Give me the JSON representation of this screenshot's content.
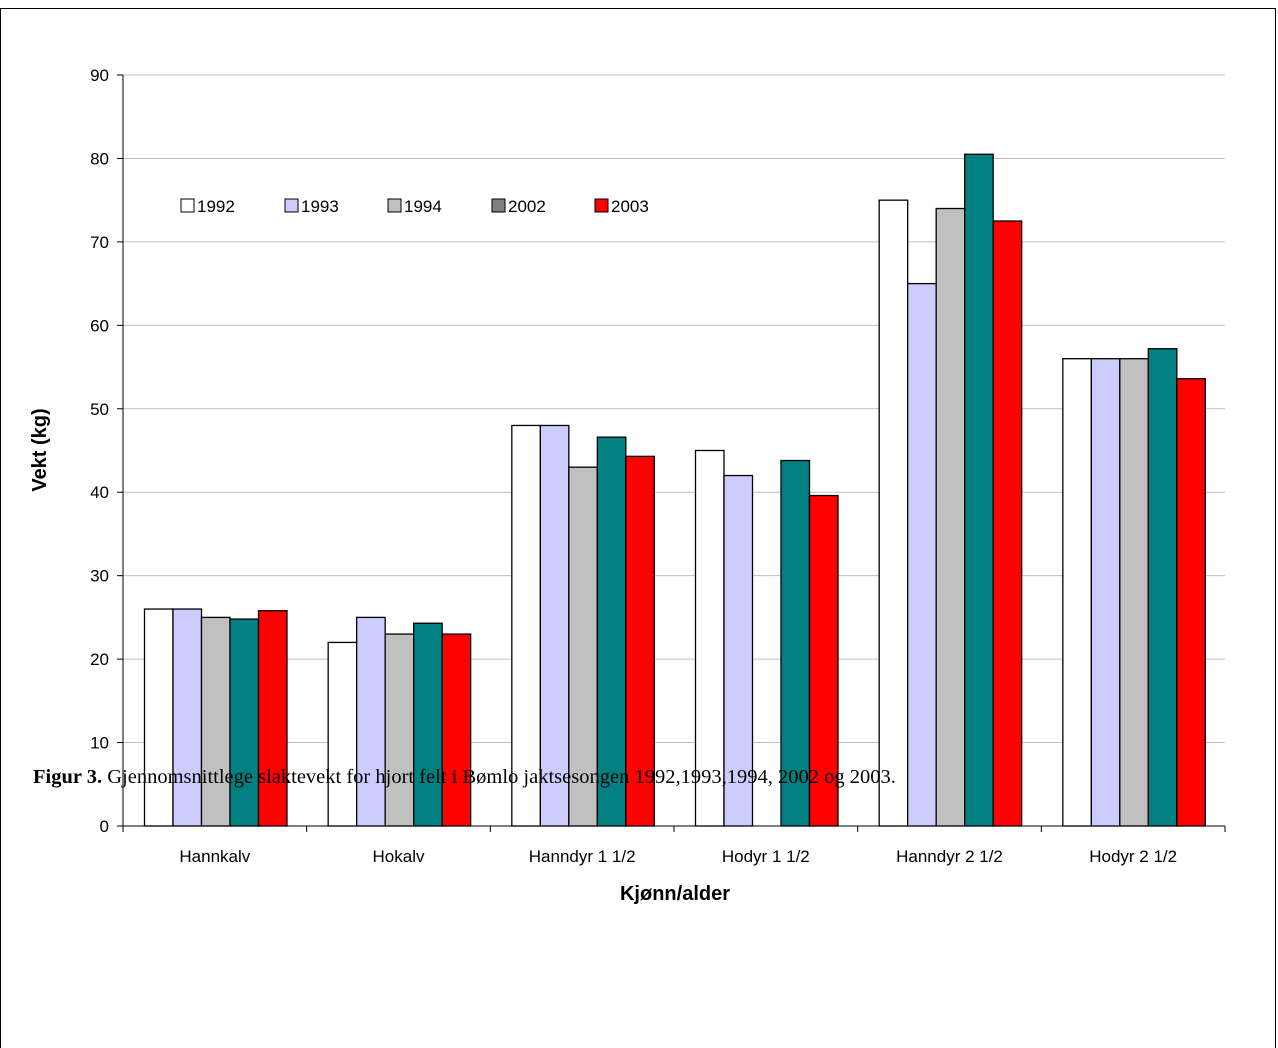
{
  "caption": {
    "label": "Figur 3.",
    "text": " Gjennomsnittlege slaktevekt for hjort felt i Bømlo jaktsesongen 1992,1993,1994, 2002 og 2003."
  },
  "chart_data": {
    "type": "bar",
    "title": "",
    "xlabel": "Kjønn/alder",
    "ylabel": "Vekt (kg)",
    "ylim": [
      0,
      90
    ],
    "yticks": [
      0,
      10,
      20,
      30,
      40,
      50,
      60,
      70,
      80,
      90
    ],
    "grid": true,
    "legend_position": "top-left",
    "categories": [
      "Hannkalv",
      "Hokalv",
      "Hanndyr 1 1/2",
      "Hodyr 1 1/2",
      "Hanndyr 2 1/2",
      "Hodyr 2 1/2"
    ],
    "series": [
      {
        "name": "1992",
        "color": "#FFFFFF",
        "values": [
          26,
          22,
          48,
          45,
          75,
          56
        ]
      },
      {
        "name": "1993",
        "color": "#CCCCFF",
        "values": [
          26,
          25,
          48,
          42,
          65,
          56
        ]
      },
      {
        "name": "1994",
        "color": "#C0C0C0",
        "values": [
          25,
          23,
          43,
          null,
          74,
          56
        ]
      },
      {
        "name": "2002",
        "color": "#008080",
        "legend_color": "#808080",
        "values": [
          24.8,
          24.3,
          46.6,
          43.8,
          80.5,
          57.2
        ]
      },
      {
        "name": "2003",
        "color": "#FF0000",
        "values": [
          25.8,
          23,
          44.3,
          39.6,
          72.5,
          53.6
        ]
      }
    ]
  }
}
